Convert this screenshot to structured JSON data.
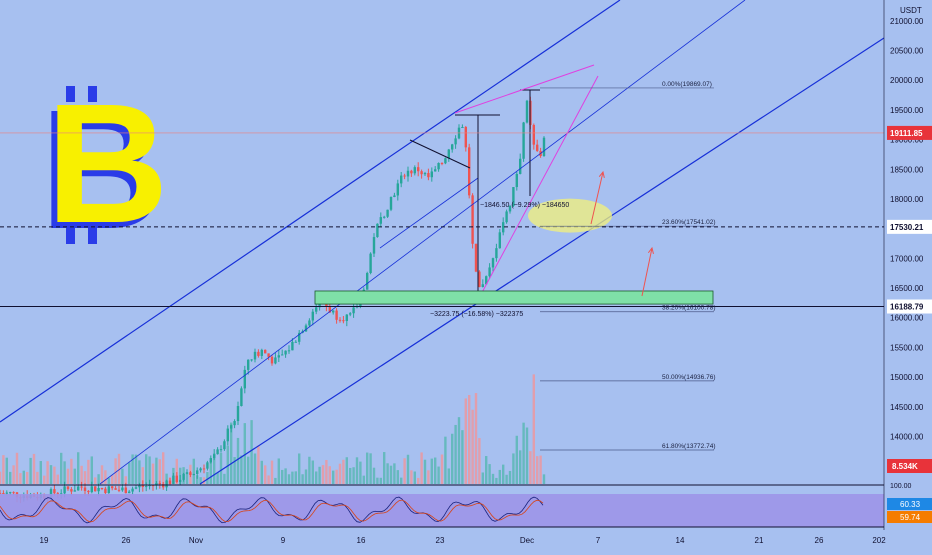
{
  "chart_data": {
    "type": "candlestick",
    "currency": "USDT",
    "y_axis_ticks": [
      "21000.00",
      "20500.00",
      "20000.00",
      "19500.00",
      "19000.00",
      "18500.00",
      "18000.00",
      "17500.00",
      "17000.00",
      "16500.00",
      "16000.00",
      "15500.00",
      "15000.00",
      "14500.00",
      "14000.00",
      "13500.00"
    ],
    "ylim": [
      13200,
      21350
    ],
    "x_axis_ticks": [
      "19",
      "26",
      "Nov",
      "9",
      "16",
      "23",
      "Dec",
      "7",
      "14",
      "21",
      "26",
      "202"
    ],
    "price_labels": {
      "last": "19111.85",
      "horizontal_1": "17530.21",
      "horizontal_2": "16188.79",
      "volume": "8.534K"
    },
    "price_levels": {
      "last": 19111.85,
      "horizontal_1": 17530.21,
      "horizontal_2": 16188.79
    },
    "fibonacci": [
      {
        "label": "0.00%(19869.07)",
        "price": 19869.07
      },
      {
        "label": "23.60%(17541.02)",
        "price": 17541.02
      },
      {
        "label": "38.20%(16100.78)",
        "price": 16100.78
      },
      {
        "label": "50.00%(14936.76)",
        "price": 14936.76
      },
      {
        "label": "61.80%(13772.74)",
        "price": 13772.74
      }
    ],
    "measurements": [
      {
        "text": "−1846.50 (−9.29%) −184650"
      },
      {
        "text": "−3223.75 (−16.58%) −322375"
      }
    ],
    "oscillator_labels": {
      "upper": "100.00",
      "value_1": "60.33",
      "value_2": "59.74"
    },
    "oscillator_values": [
      60.33,
      59.74
    ],
    "colors": {
      "background": "#a7c0f0",
      "up_candle": "#26a69a",
      "down_candle": "#ef5350",
      "channel": "#1730d8",
      "wedge": "#e040e0",
      "support_zone": "#7fe0a8",
      "highlight_ellipse": "#f3f27a",
      "logo_yellow": "#f8f000",
      "logo_blue": "#2a3ce8",
      "last_price": "#e8333a"
    }
  }
}
